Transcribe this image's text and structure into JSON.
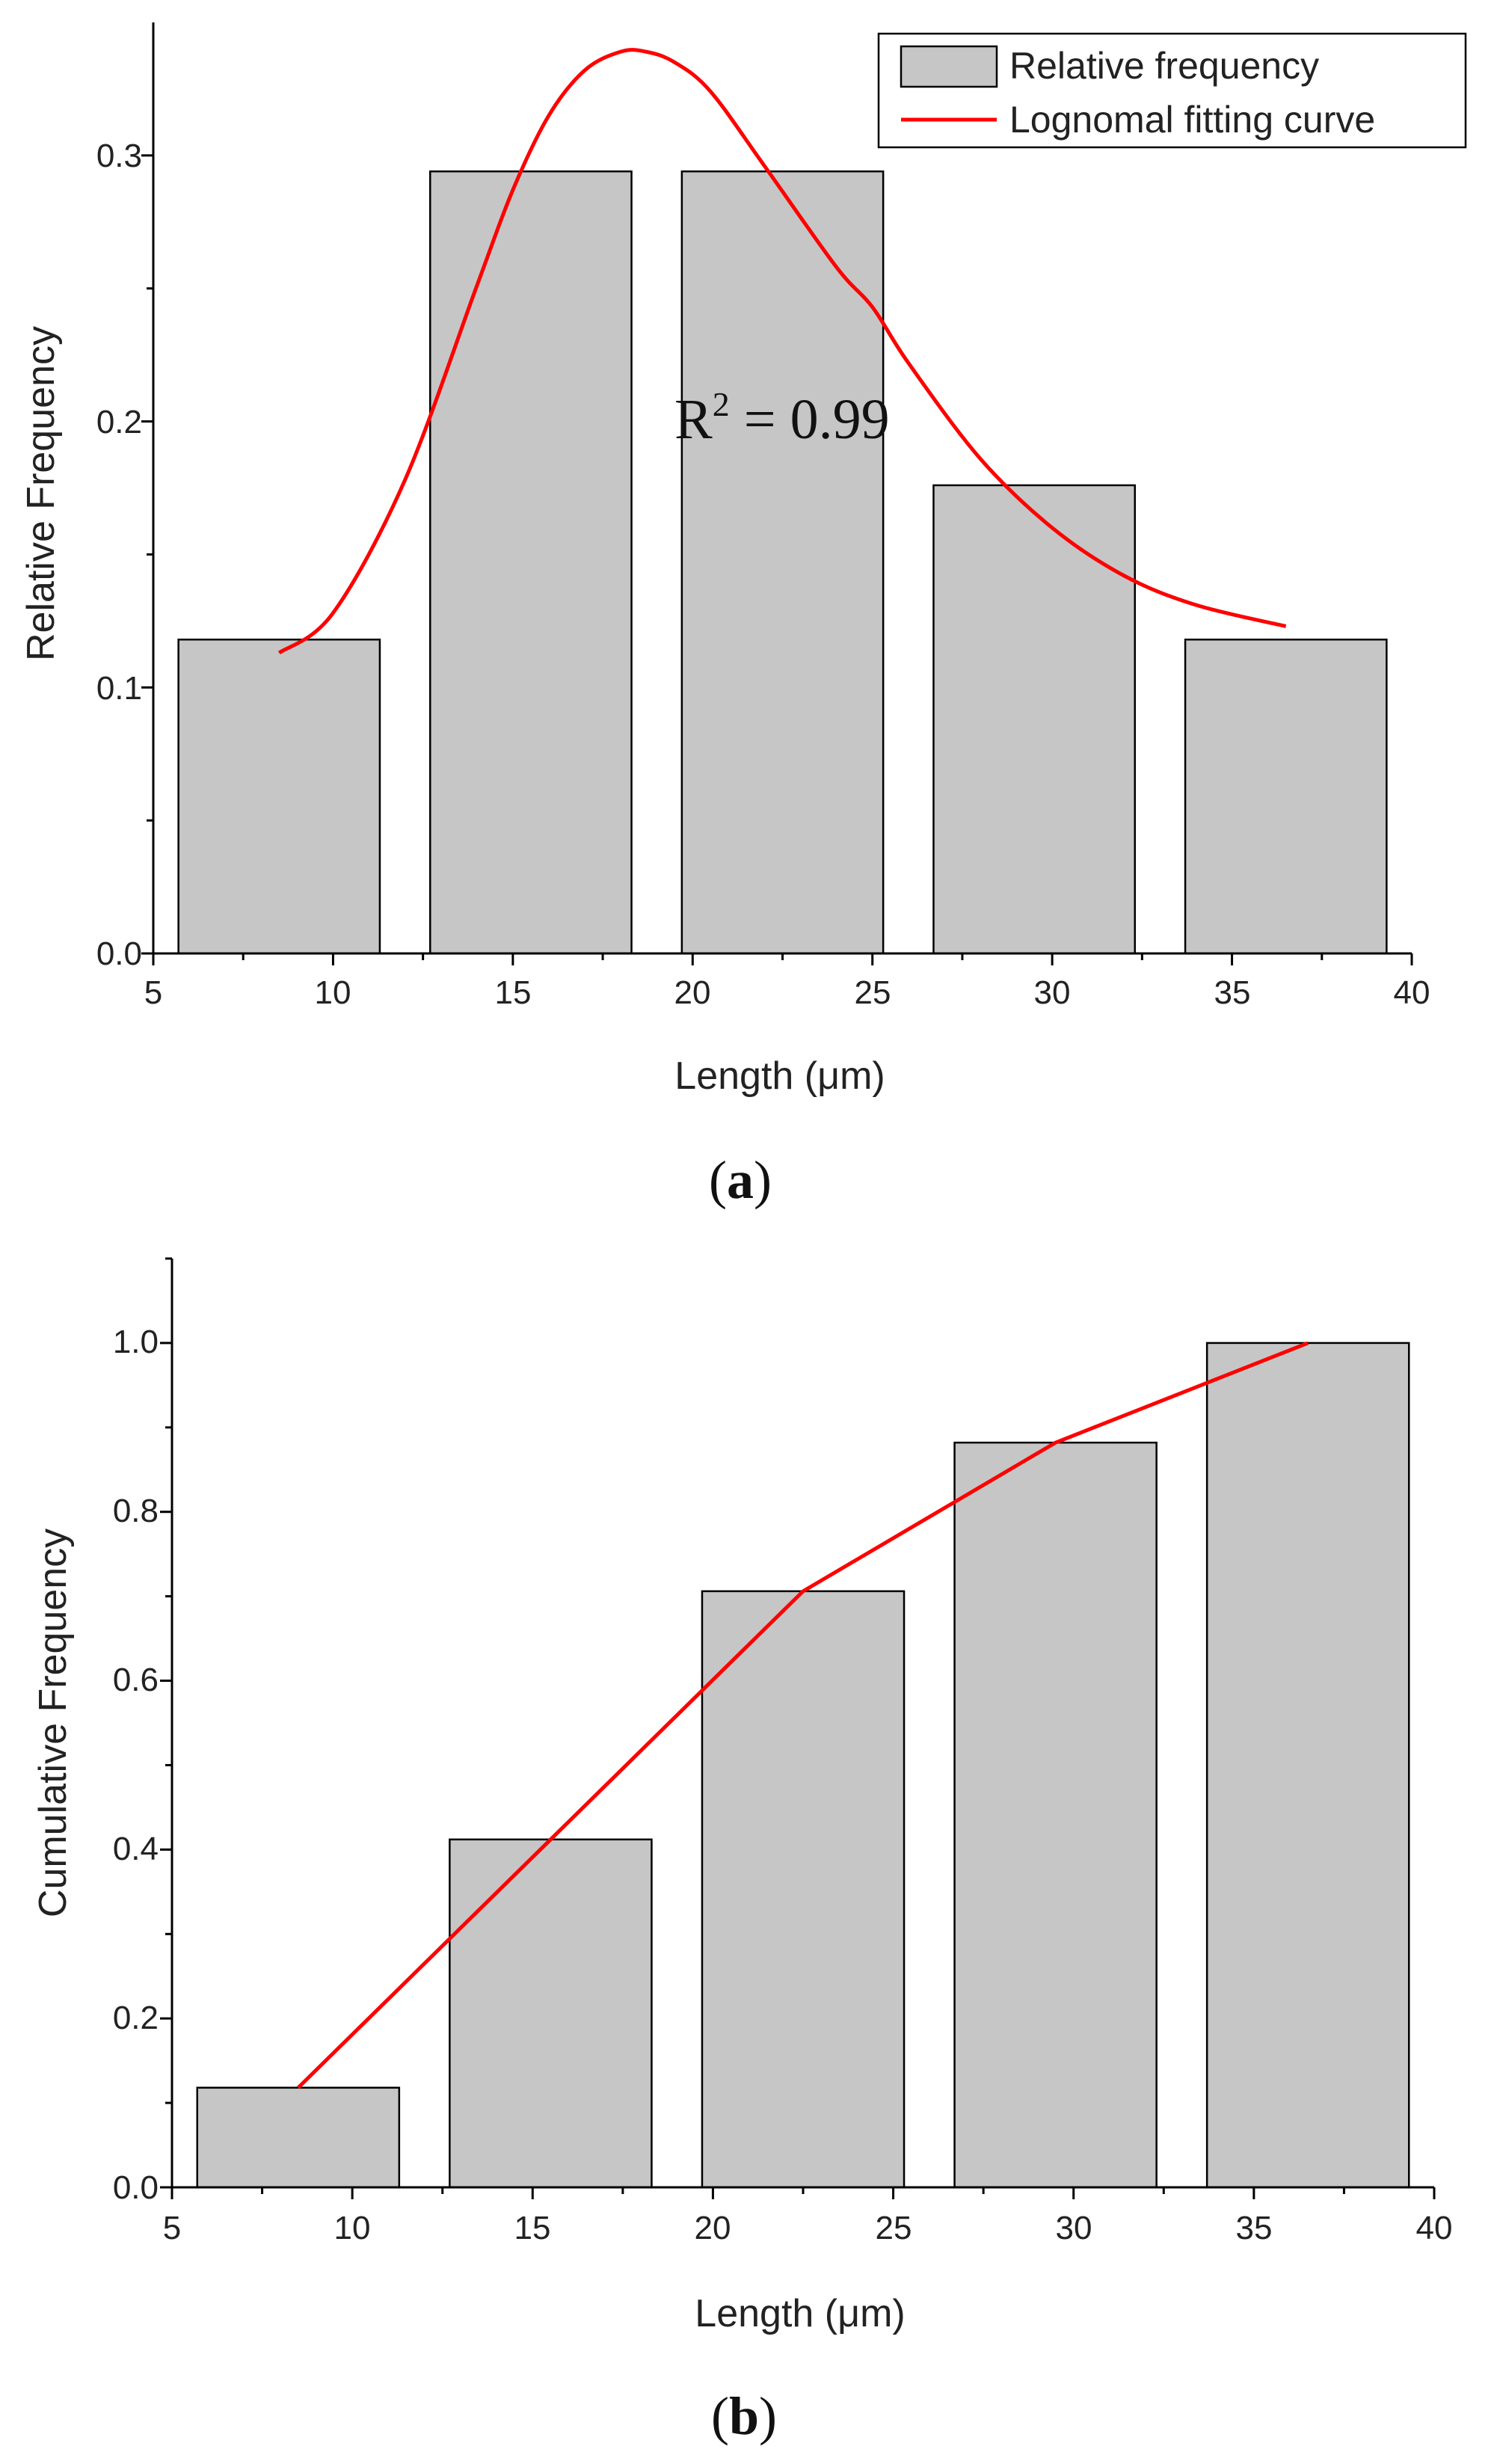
{
  "chart_data": [
    {
      "type": "bar",
      "panel_label": "(a)",
      "panel_letter": "a",
      "categories": [
        8.5,
        15.5,
        22.5,
        29.5,
        36.5
      ],
      "values": [
        0.118,
        0.294,
        0.294,
        0.176,
        0.118
      ],
      "bar_width": 5.6,
      "xlabel": "Length (μm)",
      "ylabel": "Relative Frequency",
      "xlim": [
        5,
        40
      ],
      "ylim": [
        0,
        0.35
      ],
      "xticks": [
        5,
        10,
        15,
        20,
        25,
        30,
        35,
        40
      ],
      "xtick_labels": [
        "5",
        "10",
        "15",
        "20",
        "25",
        "30",
        "35",
        "40"
      ],
      "yticks": [
        0.0,
        0.1,
        0.2,
        0.3
      ],
      "ytick_labels": [
        "0.0",
        "0.1",
        "0.2",
        "0.3"
      ],
      "bar_color": "#c6c6c6",
      "line_color": "#ff0000",
      "fit_curve": {
        "name": "Lognomal fitting curve",
        "x": [
          8.5,
          10,
          12,
          14,
          15,
          16,
          17,
          18,
          18.7,
          19.5,
          20.5,
          22,
          24,
          25,
          26,
          28,
          30,
          32,
          34,
          36.5
        ],
        "y": [
          0.113,
          0.128,
          0.178,
          0.251,
          0.287,
          0.315,
          0.332,
          0.339,
          0.339,
          0.335,
          0.324,
          0.296,
          0.258,
          0.243,
          0.222,
          0.186,
          0.16,
          0.142,
          0.131,
          0.123
        ]
      },
      "legend": [
        {
          "label": "Relative frequency",
          "kind": "bar"
        },
        {
          "label": "Lognomal fitting curve",
          "kind": "line"
        }
      ],
      "legend_position": "top-right",
      "annotation": {
        "base": "R",
        "sup": "2",
        "rest": " = 0.99",
        "x": 22.0,
        "y": 0.2
      }
    },
    {
      "type": "bar",
      "panel_label": "(b)",
      "panel_letter": "b",
      "categories": [
        8.5,
        15.5,
        22.5,
        29.5,
        36.5
      ],
      "values": [
        0.118,
        0.412,
        0.706,
        0.882,
        1.0
      ],
      "bar_width": 5.6,
      "xlabel": "Length (μm)",
      "ylabel": "Cumulative Frequency",
      "xlim": [
        5,
        40
      ],
      "ylim": [
        0,
        1.1
      ],
      "xticks": [
        5,
        10,
        15,
        20,
        25,
        30,
        35,
        40
      ],
      "xtick_labels": [
        "5",
        "10",
        "15",
        "20",
        "25",
        "30",
        "35",
        "40"
      ],
      "yticks": [
        0.0,
        0.2,
        0.4,
        0.6,
        0.8,
        1.0
      ],
      "ytick_labels": [
        "0.0",
        "0.2",
        "0.4",
        "0.6",
        "0.8",
        "1.0"
      ],
      "bar_color": "#c6c6c6",
      "line_color": "#ff0000",
      "cumulative_line": {
        "x": [
          8.5,
          15.5,
          22.5,
          29.5,
          36.5
        ],
        "y": [
          0.118,
          0.412,
          0.706,
          0.882,
          1.0
        ]
      }
    }
  ]
}
